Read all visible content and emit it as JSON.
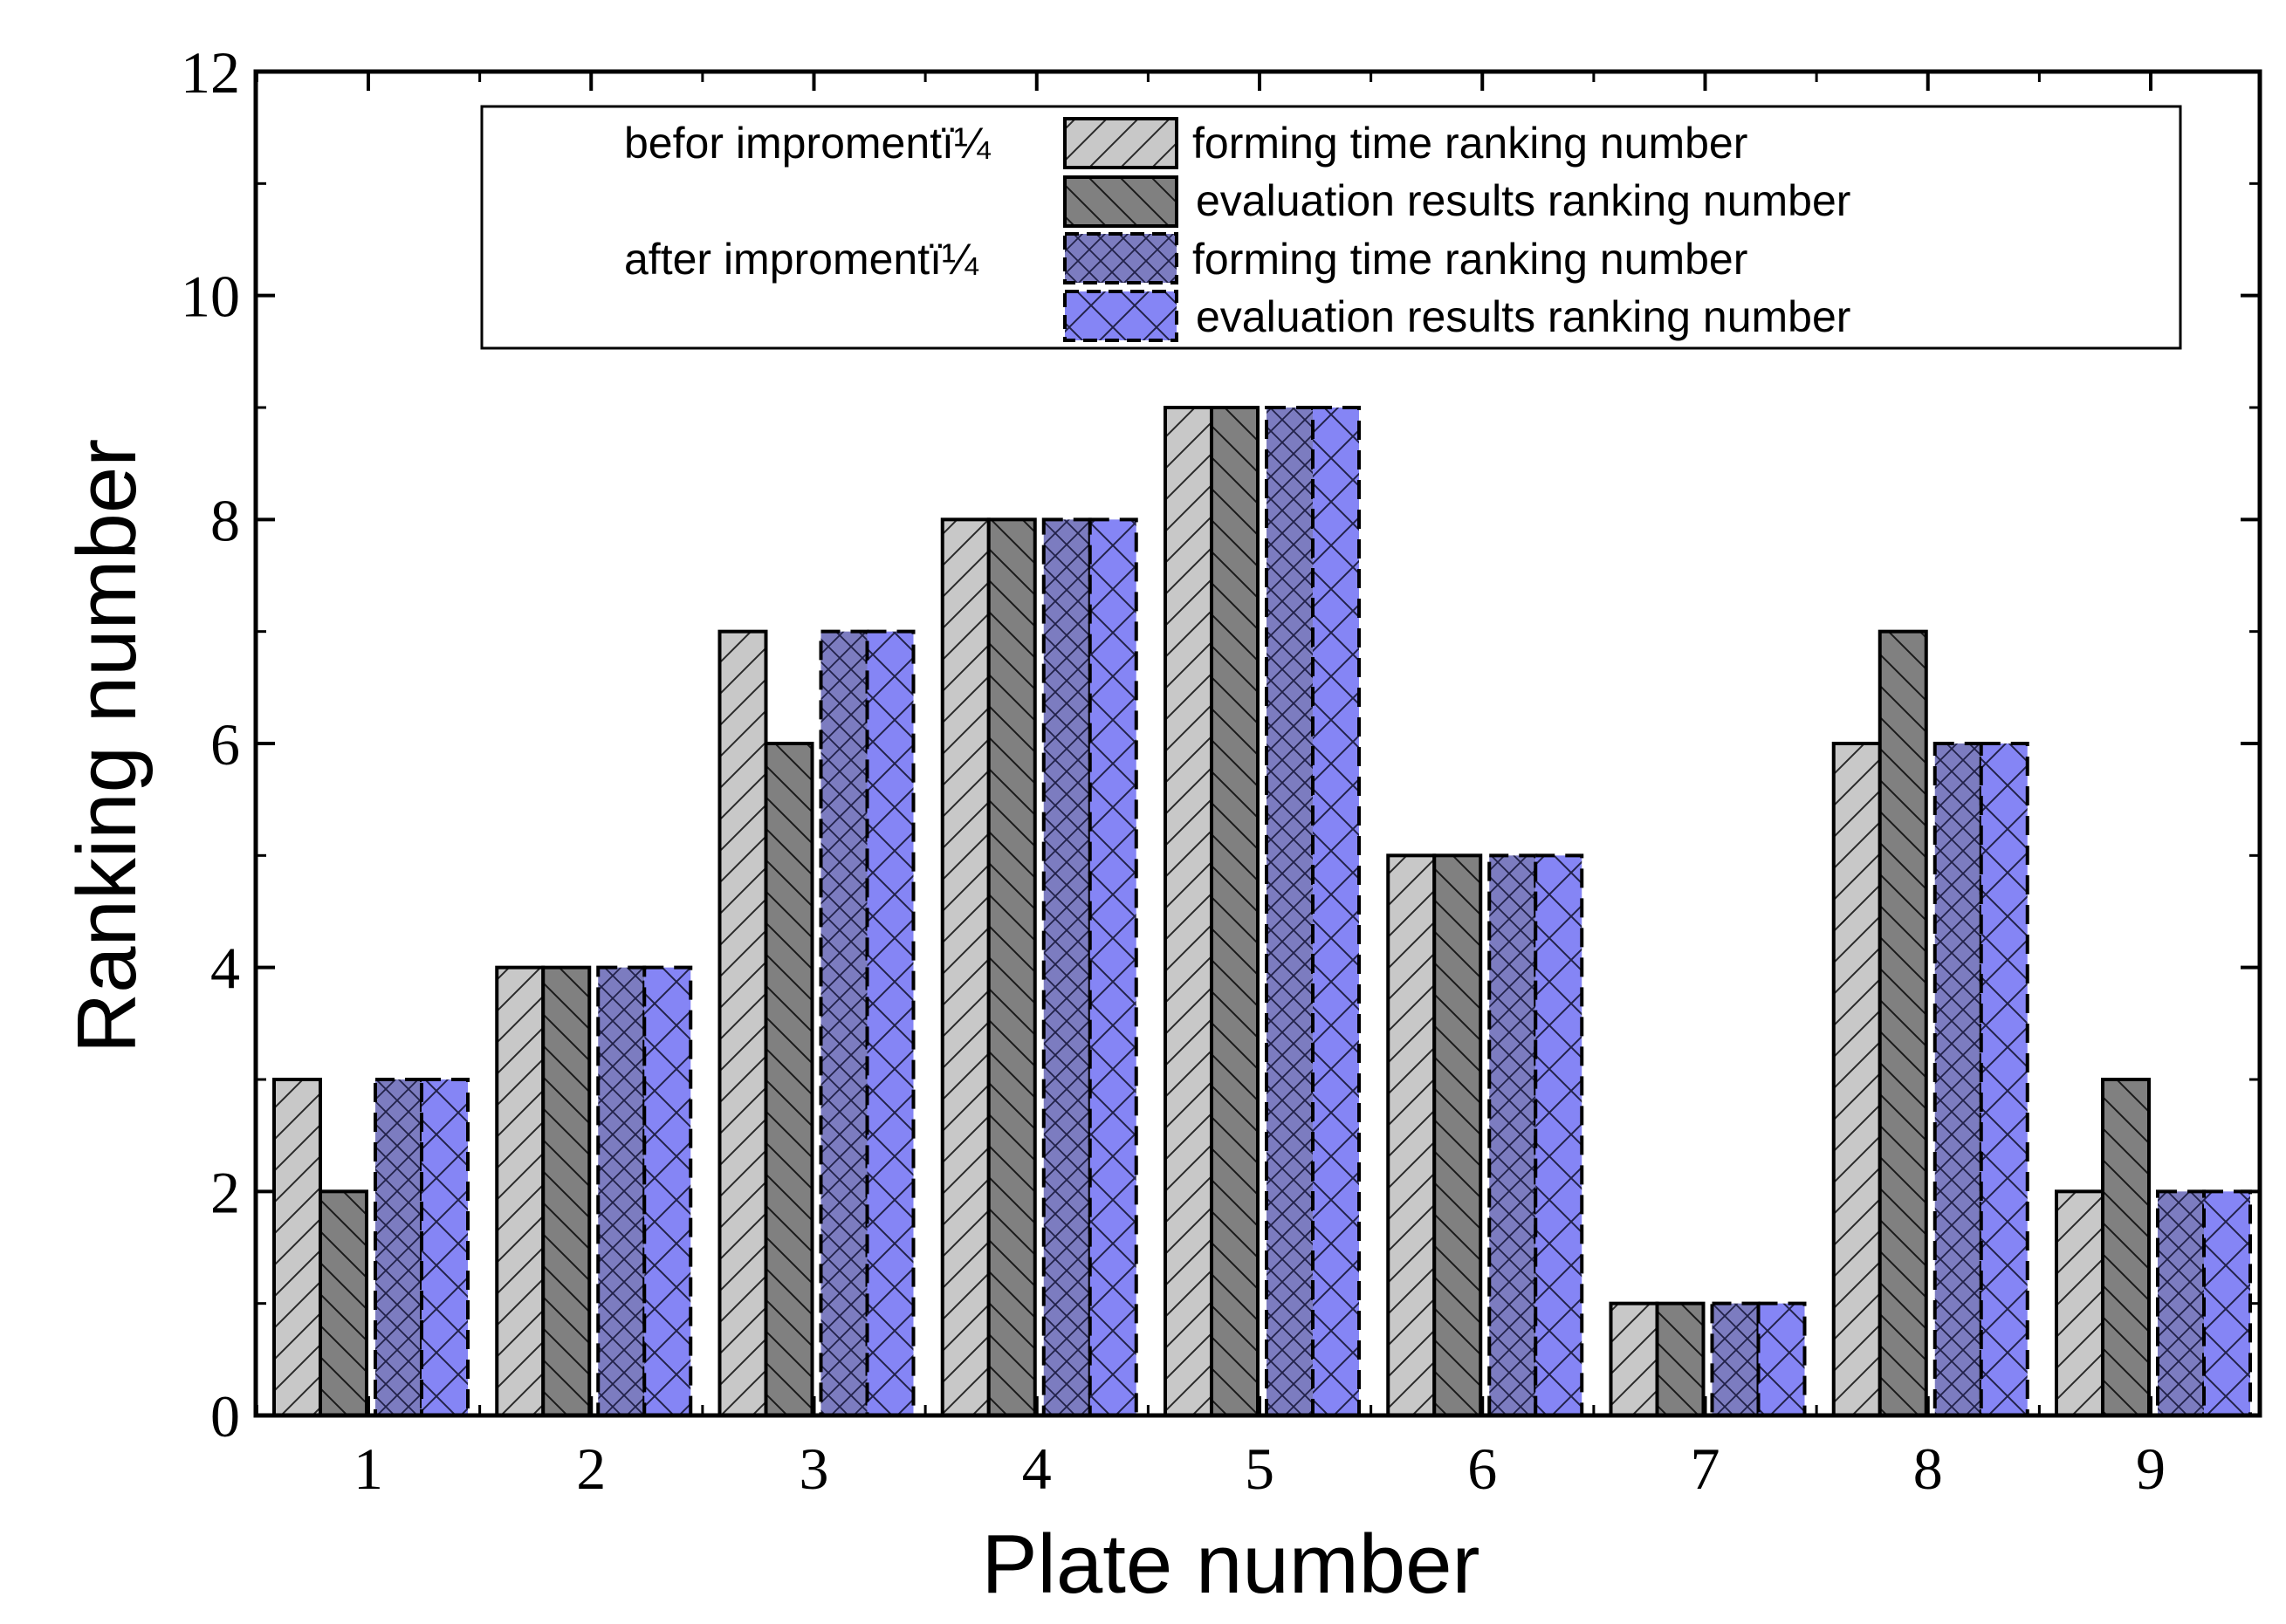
{
  "chart_data": {
    "type": "bar",
    "title": "",
    "xlabel": "Plate number",
    "ylabel": "Ranking number",
    "categories": [
      "1",
      "2",
      "3",
      "4",
      "5",
      "6",
      "7",
      "8",
      "9"
    ],
    "ylim": [
      0,
      12
    ],
    "yticks": [
      "0",
      "2",
      "4",
      "6",
      "8",
      "10",
      "12"
    ],
    "series": [
      {
        "name": "forming time ranking number",
        "group": "before",
        "values": [
          3,
          4,
          7,
          8,
          9,
          5,
          1,
          6,
          2
        ],
        "fill": "#c8c8c8",
        "hatch": "diagonal-up",
        "border": "solid"
      },
      {
        "name": "evaluation results ranking number",
        "group": "before",
        "values": [
          2,
          4,
          6,
          8,
          9,
          5,
          1,
          7,
          3
        ],
        "fill": "#808080",
        "hatch": "diagonal-down",
        "border": "solid"
      },
      {
        "name": "forming time ranking number",
        "group": "after",
        "values": [
          3,
          4,
          7,
          8,
          9,
          5,
          1,
          6,
          2
        ],
        "fill": "#7c7cc0",
        "hatch": "crosshatch-dense",
        "border": "dashed"
      },
      {
        "name": "evaluation results ranking number",
        "group": "after",
        "values": [
          3,
          4,
          7,
          8,
          9,
          5,
          1,
          6,
          2
        ],
        "fill": "#8585f5",
        "hatch": "crosshatch-wide",
        "border": "dashed"
      }
    ],
    "legend": {
      "position": "top-right",
      "group_labels": {
        "before": "befor impromentï¼",
        "after": "after  impromentï¼"
      }
    },
    "grid": false
  }
}
